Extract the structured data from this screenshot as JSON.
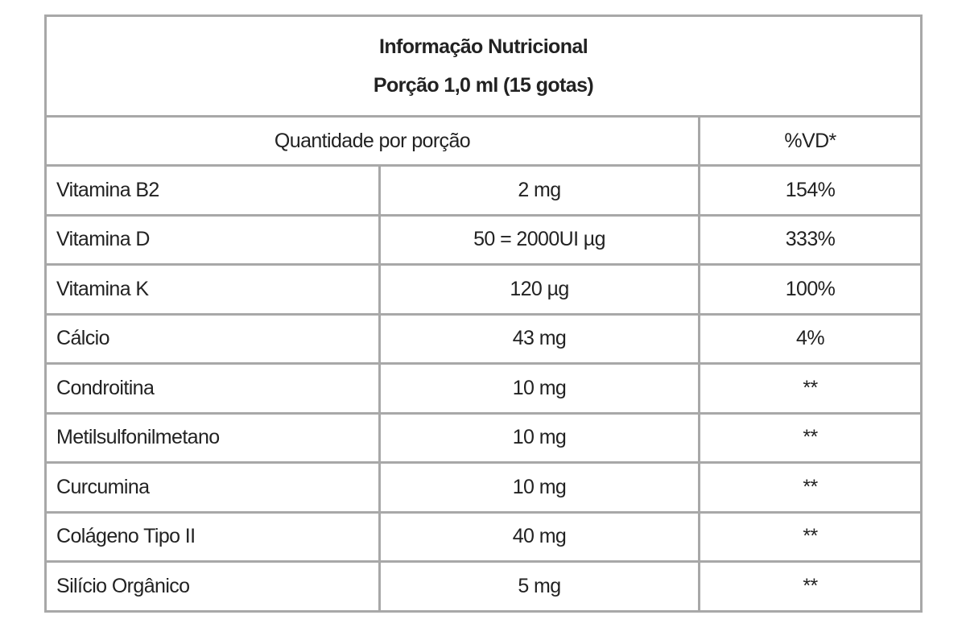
{
  "header": {
    "title": "Informação Nutricional",
    "subtitle": "Porção 1,0 ml (15 gotas)"
  },
  "table": {
    "columns": [
      "Quantidade por porção",
      "%VD*"
    ],
    "rows": [
      [
        "Vitamina B2",
        "2 mg",
        "154%"
      ],
      [
        "Vitamina D",
        "50 = 2000UI µg",
        "333%"
      ],
      [
        "Vitamina K",
        "120 µg",
        "100%"
      ],
      [
        "Cálcio",
        "43 mg",
        "4%"
      ],
      [
        "Condroitina",
        "10 mg",
        "**"
      ],
      [
        "Metilsulfonilmetano",
        "10 mg",
        "**"
      ],
      [
        "Curcumina",
        "10 mg",
        "**"
      ],
      [
        "Colágeno Tipo II",
        "40 mg",
        "**"
      ],
      [
        "Silício Orgânico",
        "5 mg",
        "**"
      ]
    ]
  }
}
